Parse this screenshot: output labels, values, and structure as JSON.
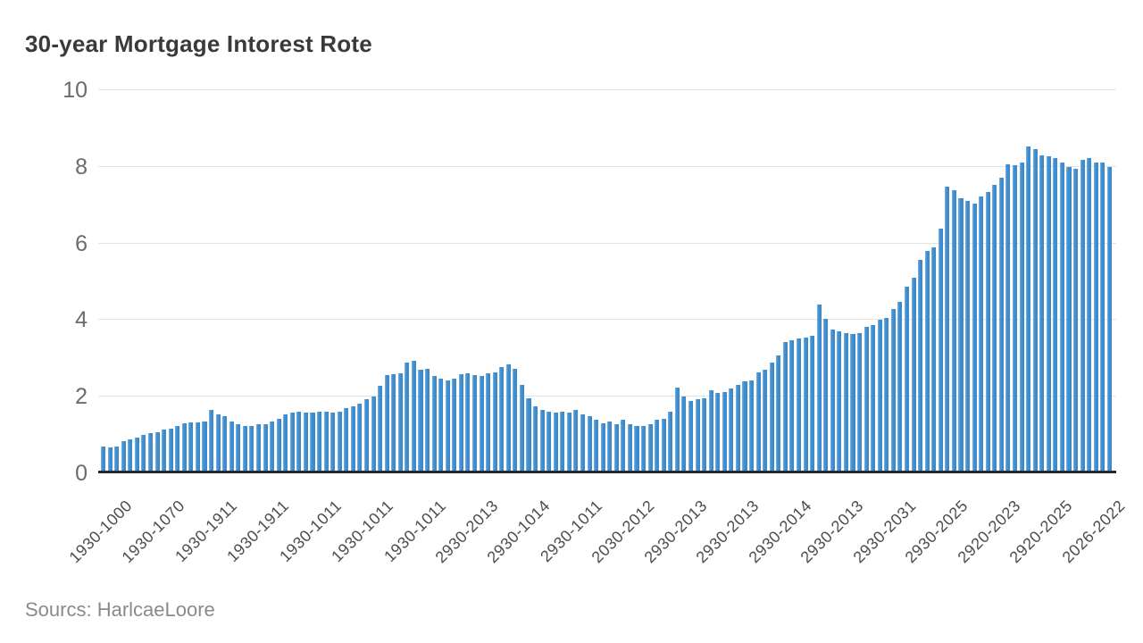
{
  "header": {
    "title": "30-year Mortgage Intorest Rote"
  },
  "footer": {
    "source": "Sourcs: HarlcaeLoore"
  },
  "colors": {
    "bar": "#4190d2",
    "bar_highlight": "#7ab4e3",
    "gridline": "#e2e2e2",
    "axis_line": "#26282a",
    "title_text": "#3a3a3a",
    "y_tick_text": "#6b6b6b",
    "x_tick_text": "#4d4d4d",
    "source_text": "#8a8a8a",
    "background": "#ffffff"
  },
  "chart_data": {
    "type": "bar",
    "title": "30-year Mortgage Intorest Rote",
    "xlabel": "",
    "ylabel": "",
    "ylim": [
      0,
      10
    ],
    "yticks": [
      0,
      2,
      4,
      6,
      8,
      10
    ],
    "grid": true,
    "legend": false,
    "x_tick_labels": [
      "1930-1000",
      "1930-1070",
      "1930-1911",
      "1930-1911",
      "1930-1011",
      "1930-1011",
      "1930-1011",
      "2930-2013",
      "2930-1014",
      "2930-1011",
      "2030-2012",
      "2930-2013",
      "2930-2013",
      "2930-2014",
      "2930-2013",
      "2930-2031",
      "2930-2025",
      "2920-2023",
      "2920-2025",
      "2026-2022"
    ],
    "values": [
      0.65,
      0.63,
      0.66,
      0.79,
      0.84,
      0.89,
      0.96,
      1.0,
      1.03,
      1.1,
      1.12,
      1.19,
      1.26,
      1.28,
      1.3,
      1.32,
      1.62,
      1.5,
      1.46,
      1.31,
      1.23,
      1.19,
      1.19,
      1.23,
      1.23,
      1.31,
      1.38,
      1.5,
      1.54,
      1.58,
      1.54,
      1.54,
      1.58,
      1.58,
      1.54,
      1.58,
      1.66,
      1.7,
      1.77,
      1.89,
      1.96,
      2.24,
      2.54,
      2.56,
      2.57,
      2.86,
      2.91,
      2.66,
      2.7,
      2.51,
      2.43,
      2.4,
      2.43,
      2.55,
      2.57,
      2.52,
      2.51,
      2.57,
      2.61,
      2.74,
      2.82,
      2.7,
      2.28,
      1.93,
      1.7,
      1.62,
      1.58,
      1.54,
      1.58,
      1.54,
      1.62,
      1.5,
      1.46,
      1.35,
      1.27,
      1.31,
      1.23,
      1.35,
      1.23,
      1.19,
      1.19,
      1.23,
      1.35,
      1.38,
      1.58,
      2.2,
      1.96,
      1.85,
      1.89,
      1.93,
      2.12,
      2.05,
      2.08,
      2.17,
      2.28,
      2.36,
      2.4,
      2.59,
      2.66,
      2.86,
      3.05,
      3.4,
      3.45,
      3.48,
      3.52,
      3.56,
      4.38,
      4.0,
      3.72,
      3.68,
      3.64,
      3.6,
      3.62,
      3.8,
      3.83,
      3.99,
      4.03,
      4.26,
      4.45,
      4.84,
      5.08,
      5.54,
      5.78,
      5.89,
      6.36,
      7.48,
      7.37,
      7.17,
      7.09,
      7.02,
      7.21,
      7.33,
      7.52,
      7.71,
      8.06,
      8.03,
      8.1,
      8.53,
      8.45,
      8.3,
      8.26,
      8.23,
      8.1,
      7.99,
      7.95,
      8.18,
      8.22,
      8.1,
      8.1,
      7.99
    ]
  }
}
